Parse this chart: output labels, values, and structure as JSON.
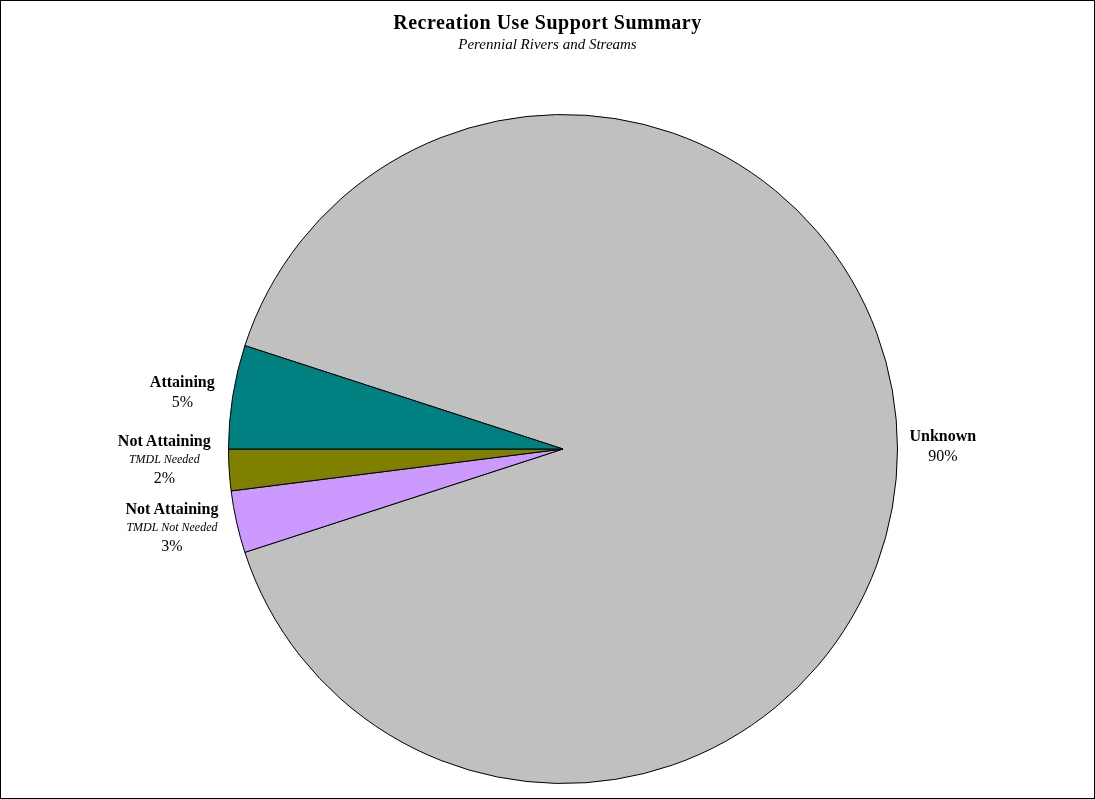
{
  "chart_data": {
    "type": "pie",
    "title": "Recreation Use Support Summary",
    "subtitle": "Perennial Rivers and Streams",
    "categories": [
      "Unknown",
      "Not Attaining\nTMDL Not Needed",
      "Not Attaining\nTMDL Needed",
      "Attaining"
    ],
    "values": [
      90,
      3,
      2,
      5
    ],
    "colors": [
      "#c0c0c0",
      "#cc99ff",
      "#808000",
      "#008080"
    ],
    "value_labels": [
      "90%",
      "3%",
      "2%",
      "5%"
    ],
    "legend": false
  }
}
